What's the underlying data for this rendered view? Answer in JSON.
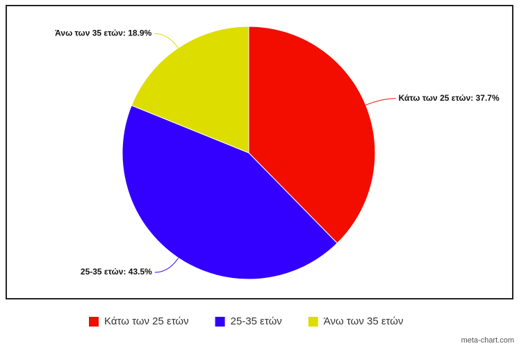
{
  "chart_data": {
    "type": "pie",
    "categories": [
      "Κάτω των 25 ετών",
      "25-35 ετών",
      "Άνω των 35 ετών"
    ],
    "values": [
      37.7,
      43.5,
      18.9
    ],
    "value_labels": [
      "Κάτω των 25 ετών: 37.7%",
      "25-35 ετών: 43.5%",
      "Άνω των 35 ετών: 18.9%"
    ],
    "colors": [
      "#f20d00",
      "#3300ff",
      "#dddd00"
    ],
    "legend": "bottom",
    "credit": "meta-chart.com"
  }
}
